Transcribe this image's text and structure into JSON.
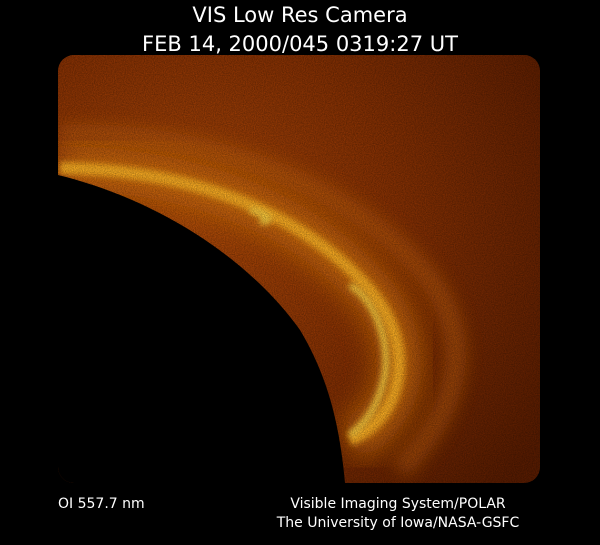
{
  "header": {
    "title": "VIS Low Res Camera",
    "timestamp": "FEB 14, 2000/045 0319:27 UT"
  },
  "footer": {
    "filter": "OI 557.7 nm",
    "credit_line1": "Visible Imaging System/POLAR",
    "credit_line2": "The University of Iowa/NASA-GSFC"
  }
}
